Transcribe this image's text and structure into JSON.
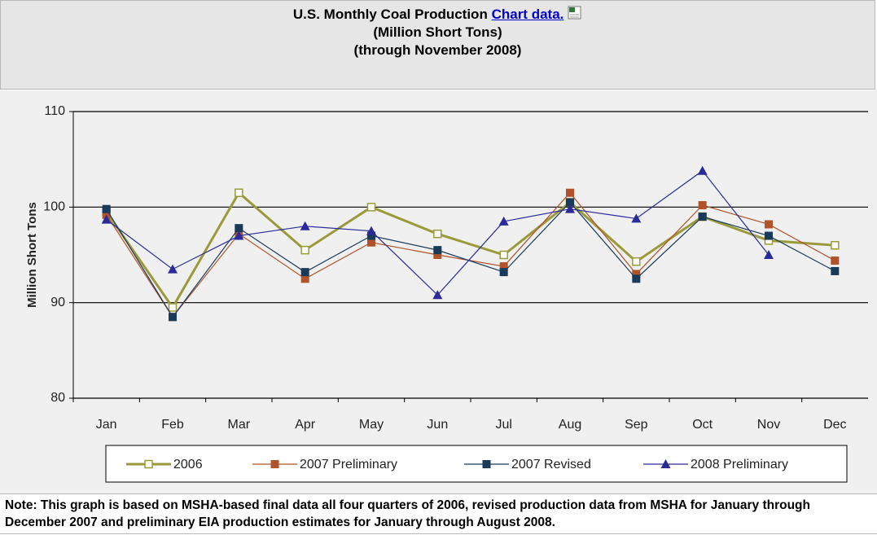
{
  "chart_data": {
    "type": "line",
    "title": "U.S. Monthly Coal Production",
    "title_link": "Chart data.",
    "subtitle": [
      "(Million Short Tons)",
      "(through November 2008)"
    ],
    "ylabel": "Million Short Tons",
    "categories": [
      "Jan",
      "Feb",
      "Mar",
      "Apr",
      "May",
      "Jun",
      "Jul",
      "Aug",
      "Sep",
      "Oct",
      "Nov",
      "Dec"
    ],
    "ylim": [
      80,
      110
    ],
    "yticks": [
      80,
      90,
      100,
      110
    ],
    "grid": true,
    "series": [
      {
        "name": "2006",
        "color": "#9a9a3a",
        "marker": "open-square",
        "values": [
          99.5,
          89.5,
          101.5,
          95.5,
          100,
          97.2,
          95,
          100.5,
          94.3,
          99,
          96.5,
          96
        ]
      },
      {
        "name": "2007 Preliminary",
        "color": "#b0522a",
        "marker": "square",
        "values": [
          99.2,
          88.5,
          97.2,
          92.5,
          96.3,
          95,
          93.8,
          101.5,
          93,
          100.2,
          98.2,
          94.4
        ]
      },
      {
        "name": "2007 Revised",
        "color": "#1a3a5a",
        "marker": "square",
        "values": [
          99.8,
          88.5,
          97.8,
          93.2,
          97,
          95.5,
          93.2,
          100.5,
          92.5,
          99,
          97,
          93.3
        ]
      },
      {
        "name": "2008 Preliminary",
        "color": "#2a2a9a",
        "marker": "triangle",
        "values": [
          98.7,
          93.5,
          97,
          98,
          97.5,
          90.8,
          98.5,
          99.8,
          98.8,
          103.8,
          95,
          null
        ]
      }
    ]
  },
  "note": "Note: This graph is based on MSHA-based final data all four quarters of 2006, revised production data from MSHA for January through December 2007 and preliminary EIA production estimates for January through August 2008."
}
